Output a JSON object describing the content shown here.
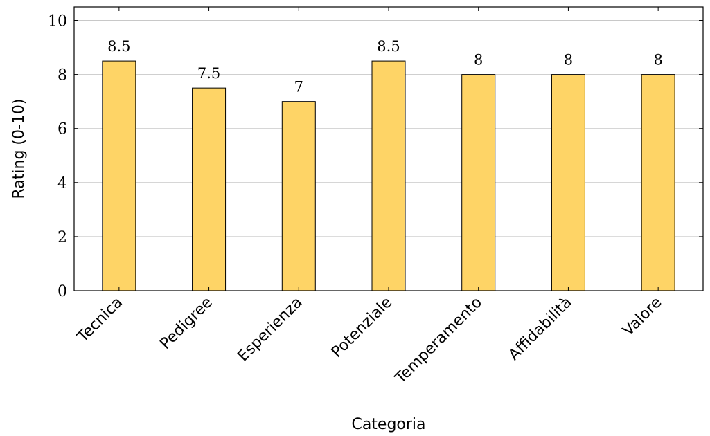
{
  "chart_data": {
    "type": "bar",
    "categories": [
      "Tecnica",
      "Pedigree",
      "Esperienza",
      "Potenziale",
      "Temperamento",
      "Affidabilità",
      "Valore"
    ],
    "values": [
      8.5,
      7.5,
      7,
      8.5,
      8,
      8,
      8
    ],
    "data_labels": [
      "8.5",
      "7.5",
      "7",
      "8.5",
      "8",
      "8",
      "8"
    ],
    "xlabel": "Categoria",
    "ylabel": "Rating (0-10)",
    "ylim": [
      0,
      10.5
    ],
    "yticks": [
      0,
      2,
      4,
      6,
      8,
      10
    ],
    "grid": "horizontal",
    "bar_color": "#fed466",
    "bar_edge_color": "#000000"
  }
}
